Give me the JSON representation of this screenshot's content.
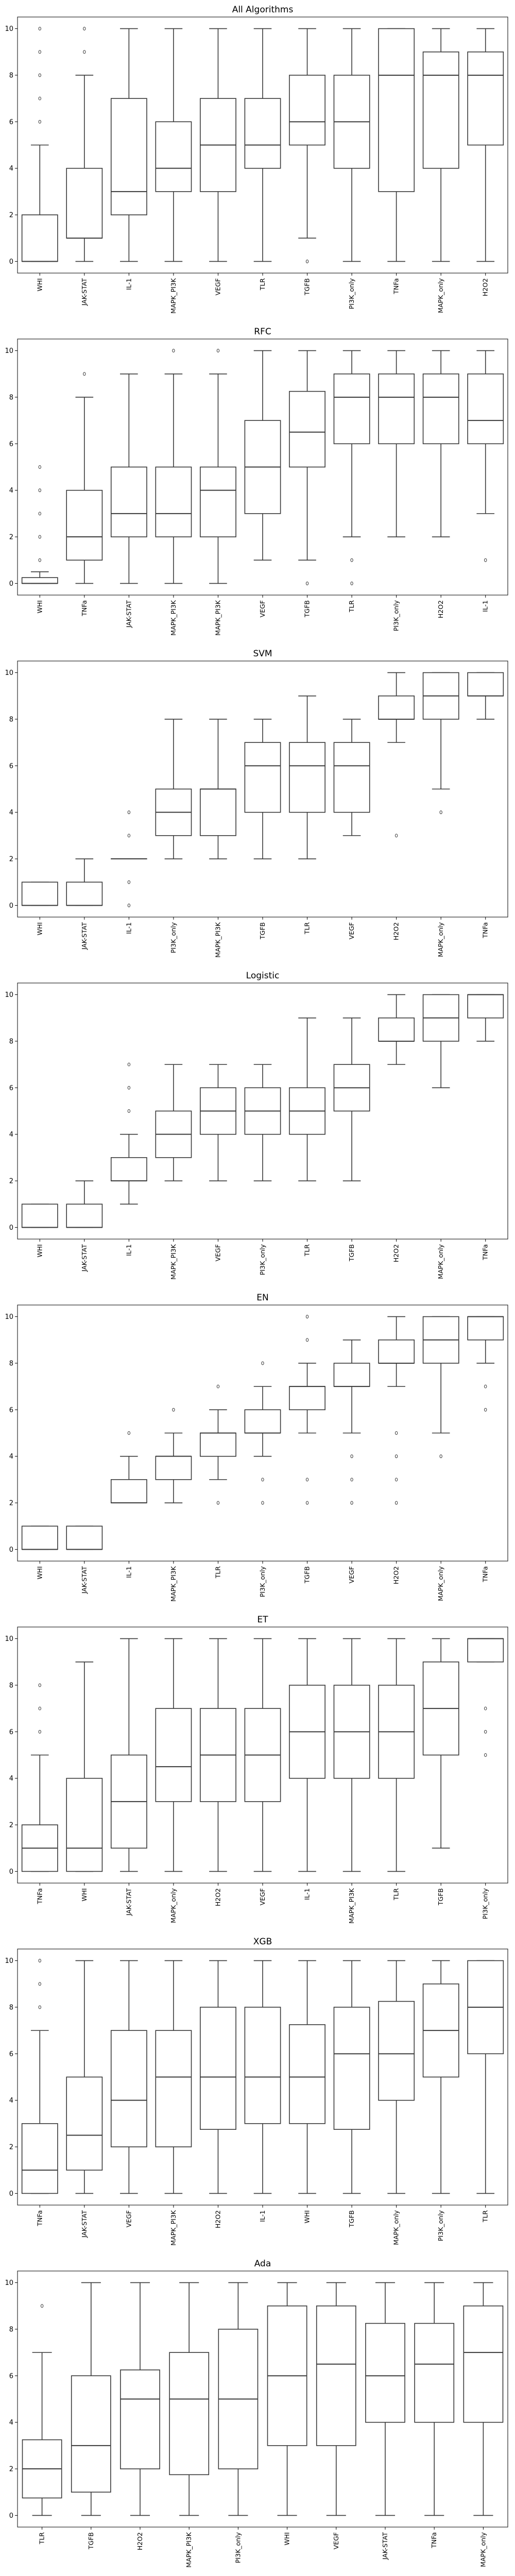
{
  "chart_data": [
    {
      "type": "box",
      "title": "All Algorithms",
      "ylim": [
        -0.5,
        10.5
      ],
      "yticks": [
        0,
        2,
        4,
        6,
        8,
        10
      ],
      "boxes": [
        {
          "label": "WHI",
          "whislo": 0,
          "q1": 0,
          "med": 0,
          "q3": 2,
          "whishi": 5,
          "fliers": [
            6,
            7,
            8,
            9,
            10
          ]
        },
        {
          "label": "JAK-STAT",
          "whislo": 0,
          "q1": 1,
          "med": 1,
          "q3": 4,
          "whishi": 8,
          "fliers": [
            9,
            10
          ]
        },
        {
          "label": "IL-1",
          "whislo": 0,
          "q1": 2,
          "med": 3,
          "q3": 7,
          "whishi": 10,
          "fliers": []
        },
        {
          "label": "MAPK_PI3K",
          "whislo": 0,
          "q1": 3,
          "med": 4,
          "q3": 6,
          "whishi": 10,
          "fliers": []
        },
        {
          "label": "VEGF",
          "whislo": 0,
          "q1": 3,
          "med": 5,
          "q3": 7,
          "whishi": 10,
          "fliers": []
        },
        {
          "label": "TLR",
          "whislo": 0,
          "q1": 4,
          "med": 5,
          "q3": 7,
          "whishi": 10,
          "fliers": []
        },
        {
          "label": "TGFB",
          "whislo": 1,
          "q1": 5,
          "med": 6,
          "q3": 8,
          "whishi": 10,
          "fliers": [
            0
          ]
        },
        {
          "label": "PI3K_only",
          "whislo": 0,
          "q1": 4,
          "med": 6,
          "q3": 8,
          "whishi": 10,
          "fliers": []
        },
        {
          "label": "TNFa",
          "whislo": 0,
          "q1": 3,
          "med": 8,
          "q3": 10,
          "whishi": 10,
          "fliers": []
        },
        {
          "label": "MAPK_only",
          "whislo": 0,
          "q1": 4,
          "med": 8,
          "q3": 9,
          "whishi": 10,
          "fliers": []
        },
        {
          "label": "H2O2",
          "whislo": 0,
          "q1": 5,
          "med": 8,
          "q3": 9,
          "whishi": 10,
          "fliers": []
        }
      ]
    },
    {
      "type": "box",
      "title": "RFC",
      "ylim": [
        -0.5,
        10.5
      ],
      "yticks": [
        0,
        2,
        4,
        6,
        8,
        10
      ],
      "boxes": [
        {
          "label": "WHI",
          "whislo": 0,
          "q1": 0,
          "med": 0,
          "q3": 0.25,
          "whishi": 0.5,
          "fliers": [
            1,
            2,
            3,
            4,
            5
          ]
        },
        {
          "label": "TNFa",
          "whislo": 0,
          "q1": 1,
          "med": 2,
          "q3": 4,
          "whishi": 8,
          "fliers": [
            9
          ]
        },
        {
          "label": "JAK-STAT",
          "whislo": 0,
          "q1": 2,
          "med": 3,
          "q3": 5,
          "whishi": 9,
          "fliers": []
        },
        {
          "label": "MAPK_PI3K",
          "whislo": 0,
          "q1": 2,
          "med": 3,
          "q3": 5,
          "whishi": 9,
          "fliers": [
            10
          ]
        },
        {
          "label": "MAPK_PI3K",
          "whislo": 0,
          "q1": 2,
          "med": 4,
          "q3": 5,
          "whishi": 9,
          "fliers": [
            10
          ]
        },
        {
          "label": "VEGF",
          "whislo": 1,
          "q1": 3,
          "med": 5,
          "q3": 7,
          "whishi": 10,
          "fliers": []
        },
        {
          "label": "TGFB",
          "whislo": 1,
          "q1": 5,
          "med": 6.5,
          "q3": 8.25,
          "whishi": 10,
          "fliers": [
            0
          ]
        },
        {
          "label": "TLR",
          "whislo": 2,
          "q1": 6,
          "med": 8,
          "q3": 9,
          "whishi": 10,
          "fliers": [
            0,
            1
          ]
        },
        {
          "label": "PI3K_only",
          "whislo": 2,
          "q1": 6,
          "med": 8,
          "q3": 9,
          "whishi": 10,
          "fliers": []
        },
        {
          "label": "H2O2",
          "whislo": 2,
          "q1": 6,
          "med": 8,
          "q3": 9,
          "whishi": 10,
          "fliers": []
        },
        {
          "label": "IL-1",
          "whislo": 3,
          "q1": 6,
          "med": 7,
          "q3": 9,
          "whishi": 10,
          "fliers": [
            1
          ]
        }
      ]
    },
    {
      "type": "box",
      "title": "SVM",
      "ylim": [
        -0.5,
        10.5
      ],
      "yticks": [
        0,
        2,
        4,
        6,
        8,
        10
      ],
      "boxes": [
        {
          "label": "WHI",
          "whislo": 0,
          "q1": 0,
          "med": 0,
          "q3": 1,
          "whishi": 1,
          "fliers": []
        },
        {
          "label": "JAK-STAT",
          "whislo": 0,
          "q1": 0,
          "med": 0,
          "q3": 1,
          "whishi": 2,
          "fliers": []
        },
        {
          "label": "IL-1",
          "whislo": 2,
          "q1": 2,
          "med": 2,
          "q3": 2,
          "whishi": 2,
          "fliers": [
            0,
            1,
            3,
            4
          ]
        },
        {
          "label": "PI3K_only",
          "whislo": 2,
          "q1": 3,
          "med": 4,
          "q3": 5,
          "whishi": 8,
          "fliers": []
        },
        {
          "label": "MAPK_PI3K",
          "whislo": 2,
          "q1": 3,
          "med": 5,
          "q3": 5,
          "whishi": 8,
          "fliers": []
        },
        {
          "label": "TGFB",
          "whislo": 2,
          "q1": 4,
          "med": 6,
          "q3": 7,
          "whishi": 8,
          "fliers": []
        },
        {
          "label": "TLR",
          "whislo": 2,
          "q1": 4,
          "med": 6,
          "q3": 7,
          "whishi": 9,
          "fliers": []
        },
        {
          "label": "VEGF",
          "whislo": 3,
          "q1": 4,
          "med": 6,
          "q3": 7,
          "whishi": 8,
          "fliers": []
        },
        {
          "label": "H2O2",
          "whislo": 7,
          "q1": 8,
          "med": 8,
          "q3": 9,
          "whishi": 10,
          "fliers": [
            3
          ]
        },
        {
          "label": "MAPK_only",
          "whislo": 5,
          "q1": 8,
          "med": 9,
          "q3": 10,
          "whishi": 10,
          "fliers": [
            4
          ]
        },
        {
          "label": "TNFa",
          "whislo": 8,
          "q1": 9,
          "med": 9,
          "q3": 10,
          "whishi": 10,
          "fliers": []
        }
      ]
    },
    {
      "type": "box",
      "title": "Logistic",
      "ylim": [
        -0.5,
        10.5
      ],
      "yticks": [
        0,
        2,
        4,
        6,
        8,
        10
      ],
      "boxes": [
        {
          "label": "WHI",
          "whislo": 0,
          "q1": 0,
          "med": 0,
          "q3": 1,
          "whishi": 1,
          "fliers": []
        },
        {
          "label": "JAK-STAT",
          "whislo": 0,
          "q1": 0,
          "med": 0,
          "q3": 1,
          "whishi": 2,
          "fliers": []
        },
        {
          "label": "IL-1",
          "whislo": 1,
          "q1": 2,
          "med": 2,
          "q3": 3,
          "whishi": 4,
          "fliers": [
            5,
            6,
            7
          ]
        },
        {
          "label": "MAPK_PI3K",
          "whislo": 2,
          "q1": 3,
          "med": 4,
          "q3": 5,
          "whishi": 7,
          "fliers": []
        },
        {
          "label": "VEGF",
          "whislo": 2,
          "q1": 4,
          "med": 5,
          "q3": 6,
          "whishi": 7,
          "fliers": []
        },
        {
          "label": "PI3K_only",
          "whislo": 2,
          "q1": 4,
          "med": 5,
          "q3": 6,
          "whishi": 7,
          "fliers": []
        },
        {
          "label": "TLR",
          "whislo": 2,
          "q1": 4,
          "med": 5,
          "q3": 6,
          "whishi": 9,
          "fliers": []
        },
        {
          "label": "TGFB",
          "whislo": 2,
          "q1": 5,
          "med": 6,
          "q3": 7,
          "whishi": 9,
          "fliers": []
        },
        {
          "label": "H2O2",
          "whislo": 7,
          "q1": 8,
          "med": 8,
          "q3": 9,
          "whishi": 10,
          "fliers": []
        },
        {
          "label": "MAPK_only",
          "whislo": 6,
          "q1": 8,
          "med": 9,
          "q3": 10,
          "whishi": 10,
          "fliers": []
        },
        {
          "label": "TNFa",
          "whislo": 8,
          "q1": 9,
          "med": 10,
          "q3": 10,
          "whishi": 10,
          "fliers": []
        }
      ]
    },
    {
      "type": "box",
      "title": "EN",
      "ylim": [
        -0.5,
        10.5
      ],
      "yticks": [
        0,
        2,
        4,
        6,
        8,
        10
      ],
      "boxes": [
        {
          "label": "WHI",
          "whislo": 0,
          "q1": 0,
          "med": 0,
          "q3": 1,
          "whishi": 1,
          "fliers": []
        },
        {
          "label": "JAK-STAT",
          "whislo": 0,
          "q1": 0,
          "med": 0,
          "q3": 1,
          "whishi": 1,
          "fliers": []
        },
        {
          "label": "IL-1",
          "whislo": 2,
          "q1": 2,
          "med": 2,
          "q3": 3,
          "whishi": 4,
          "fliers": [
            5
          ]
        },
        {
          "label": "MAPK_PI3K",
          "whislo": 2,
          "q1": 3,
          "med": 4,
          "q3": 4,
          "whishi": 5,
          "fliers": [
            6
          ]
        },
        {
          "label": "TLR",
          "whislo": 3,
          "q1": 4,
          "med": 5,
          "q3": 5,
          "whishi": 6,
          "fliers": [
            2,
            7
          ]
        },
        {
          "label": "PI3K_only",
          "whislo": 4,
          "q1": 5,
          "med": 5,
          "q3": 6,
          "whishi": 7,
          "fliers": [
            2,
            3,
            8
          ]
        },
        {
          "label": "TGFB",
          "whislo": 5,
          "q1": 6,
          "med": 7,
          "q3": 7,
          "whishi": 8,
          "fliers": [
            2,
            3,
            9,
            10
          ]
        },
        {
          "label": "VEGF",
          "whislo": 5,
          "q1": 7,
          "med": 7,
          "q3": 8,
          "whishi": 9,
          "fliers": [
            2,
            3,
            4
          ]
        },
        {
          "label": "H2O2",
          "whislo": 7,
          "q1": 8,
          "med": 8,
          "q3": 9,
          "whishi": 10,
          "fliers": [
            2,
            3,
            4,
            5
          ]
        },
        {
          "label": "MAPK_only",
          "whislo": 5,
          "q1": 8,
          "med": 9,
          "q3": 10,
          "whishi": 10,
          "fliers": [
            4
          ]
        },
        {
          "label": "TNFa",
          "whislo": 8,
          "q1": 9,
          "med": 10,
          "q3": 10,
          "whishi": 10,
          "fliers": [
            6,
            7
          ]
        }
      ]
    },
    {
      "type": "box",
      "title": "ET",
      "ylim": [
        -0.5,
        10.5
      ],
      "yticks": [
        0,
        2,
        4,
        6,
        8,
        10
      ],
      "boxes": [
        {
          "label": "TNFa",
          "whislo": 0,
          "q1": 0,
          "med": 1,
          "q3": 2,
          "whishi": 5,
          "fliers": [
            6,
            7,
            8
          ]
        },
        {
          "label": "WHI",
          "whislo": 0,
          "q1": 0,
          "med": 1,
          "q3": 4,
          "whishi": 9,
          "fliers": []
        },
        {
          "label": "JAK-STAT",
          "whislo": 0,
          "q1": 1,
          "med": 3,
          "q3": 5,
          "whishi": 10,
          "fliers": []
        },
        {
          "label": "MAPK_only",
          "whislo": 0,
          "q1": 3,
          "med": 4.5,
          "q3": 7,
          "whishi": 10,
          "fliers": []
        },
        {
          "label": "H2O2",
          "whislo": 0,
          "q1": 3,
          "med": 5,
          "q3": 7,
          "whishi": 10,
          "fliers": []
        },
        {
          "label": "VEGF",
          "whislo": 0,
          "q1": 3,
          "med": 5,
          "q3": 7,
          "whishi": 10,
          "fliers": []
        },
        {
          "label": "IL-1",
          "whislo": 0,
          "q1": 4,
          "med": 6,
          "q3": 8,
          "whishi": 10,
          "fliers": []
        },
        {
          "label": "MAPK_PI3K",
          "whislo": 0,
          "q1": 4,
          "med": 6,
          "q3": 8,
          "whishi": 10,
          "fliers": []
        },
        {
          "label": "TLR",
          "whislo": 0,
          "q1": 4,
          "med": 6,
          "q3": 8,
          "whishi": 10,
          "fliers": []
        },
        {
          "label": "TGFB",
          "whislo": 1,
          "q1": 5,
          "med": 7,
          "q3": 9,
          "whishi": 10,
          "fliers": []
        },
        {
          "label": "PI3K_only",
          "whislo": 9,
          "q1": 9,
          "med": 10,
          "q3": 10,
          "whishi": 10,
          "fliers": [
            5,
            6,
            7
          ]
        }
      ]
    },
    {
      "type": "box",
      "title": "XGB",
      "ylim": [
        -0.5,
        10.5
      ],
      "yticks": [
        0,
        2,
        4,
        6,
        8,
        10
      ],
      "boxes": [
        {
          "label": "TNFa",
          "whislo": 0,
          "q1": 0,
          "med": 1,
          "q3": 3,
          "whishi": 7,
          "fliers": [
            8,
            9,
            10
          ]
        },
        {
          "label": "JAK-STAT",
          "whislo": 0,
          "q1": 1,
          "med": 2.5,
          "q3": 5,
          "whishi": 10,
          "fliers": []
        },
        {
          "label": "VEGF",
          "whislo": 0,
          "q1": 2,
          "med": 4,
          "q3": 7,
          "whishi": 10,
          "fliers": []
        },
        {
          "label": "MAPK_PI3K",
          "whislo": 0,
          "q1": 2,
          "med": 5,
          "q3": 7,
          "whishi": 10,
          "fliers": []
        },
        {
          "label": "H2O2",
          "whislo": 0,
          "q1": 2.75,
          "med": 5,
          "q3": 8,
          "whishi": 10,
          "fliers": []
        },
        {
          "label": "IL-1",
          "whislo": 0,
          "q1": 3,
          "med": 5,
          "q3": 8,
          "whishi": 10,
          "fliers": []
        },
        {
          "label": "WHI",
          "whislo": 0,
          "q1": 3,
          "med": 5,
          "q3": 7.25,
          "whishi": 10,
          "fliers": []
        },
        {
          "label": "TGFB",
          "whislo": 0,
          "q1": 2.75,
          "med": 6,
          "q3": 8,
          "whishi": 10,
          "fliers": []
        },
        {
          "label": "MAPK_only",
          "whislo": 0,
          "q1": 4,
          "med": 6,
          "q3": 8.25,
          "whishi": 10,
          "fliers": []
        },
        {
          "label": "PI3K_only",
          "whislo": 0,
          "q1": 5,
          "med": 7,
          "q3": 9,
          "whishi": 10,
          "fliers": []
        },
        {
          "label": "TLR",
          "whislo": 0,
          "q1": 6,
          "med": 8,
          "q3": 10,
          "whishi": 10,
          "fliers": []
        }
      ]
    },
    {
      "type": "box",
      "title": "Ada",
      "ylim": [
        -0.5,
        10.5
      ],
      "yticks": [
        0,
        2,
        4,
        6,
        8,
        10
      ],
      "boxes": [
        {
          "label": "TLR",
          "whislo": 0,
          "q1": 0.75,
          "med": 2,
          "q3": 3.25,
          "whishi": 7,
          "fliers": [
            9
          ]
        },
        {
          "label": "TGFB",
          "whislo": 0,
          "q1": 1,
          "med": 3,
          "q3": 6,
          "whishi": 10,
          "fliers": []
        },
        {
          "label": "H2O2",
          "whislo": 0,
          "q1": 2,
          "med": 5,
          "q3": 6.25,
          "whishi": 10,
          "fliers": []
        },
        {
          "label": "MAPK_PI3K",
          "whislo": 0,
          "q1": 1.75,
          "med": 5,
          "q3": 7,
          "whishi": 10,
          "fliers": []
        },
        {
          "label": "PI3K_only",
          "whislo": 0,
          "q1": 2,
          "med": 5,
          "q3": 8,
          "whishi": 10,
          "fliers": []
        },
        {
          "label": "WHI",
          "whislo": 0,
          "q1": 3,
          "med": 6,
          "q3": 9,
          "whishi": 10,
          "fliers": []
        },
        {
          "label": "VEGF",
          "whislo": 0,
          "q1": 3,
          "med": 6.5,
          "q3": 9,
          "whishi": 10,
          "fliers": []
        },
        {
          "label": "JAK-STAT",
          "whislo": 0,
          "q1": 4,
          "med": 6,
          "q3": 8.25,
          "whishi": 10,
          "fliers": []
        },
        {
          "label": "TNFa",
          "whislo": 0,
          "q1": 4,
          "med": 6.5,
          "q3": 8.25,
          "whishi": 10,
          "fliers": []
        },
        {
          "label": "MAPK_only",
          "whislo": 0,
          "q1": 4,
          "med": 7,
          "q3": 9,
          "whishi": 10,
          "fliers": []
        }
      ]
    }
  ]
}
